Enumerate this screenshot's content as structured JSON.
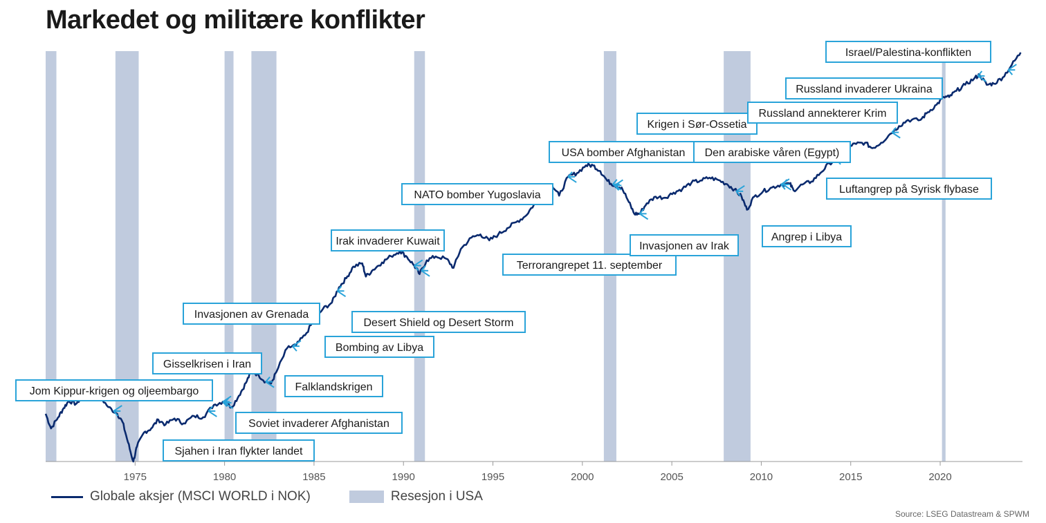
{
  "title": "Markedet og militære konflikter",
  "legend": {
    "series_label": "Globale aksjer (MSCI WORLD i NOK)",
    "recession_label": "Resesjon i USA"
  },
  "source": "Source: LSEG Datastream & SPWM",
  "colors": {
    "series": "#0a2a6e",
    "recession": "#c0cbde",
    "annotation_border": "#29a3d9",
    "arrow": "#29a3d9"
  },
  "chart_data": {
    "type": "line",
    "title": "Markedet og militære konflikter",
    "xlabel": "",
    "ylabel": "",
    "xlim": [
      1970.0,
      2024.6
    ],
    "y_scale": "log",
    "grid": false,
    "legend_position": "bottom-left",
    "x_ticks": [
      1975,
      1980,
      1985,
      1990,
      1995,
      2000,
      2005,
      2010,
      2015,
      2020
    ],
    "series": [
      {
        "name": "Globale aksjer (MSCI WORLD i NOK)",
        "points": [
          [
            1970.0,
            1.0
          ],
          [
            1970.3,
            0.88
          ],
          [
            1970.7,
            0.97
          ],
          [
            1971.0,
            1.05
          ],
          [
            1971.3,
            1.12
          ],
          [
            1971.7,
            1.09
          ],
          [
            1972.0,
            1.15
          ],
          [
            1972.5,
            1.19
          ],
          [
            1972.8,
            1.22
          ],
          [
            1973.0,
            1.17
          ],
          [
            1973.5,
            1.06
          ],
          [
            1974.0,
            1.0
          ],
          [
            1974.3,
            0.93
          ],
          [
            1974.6,
            0.78
          ],
          [
            1974.9,
            0.66
          ],
          [
            1975.1,
            0.75
          ],
          [
            1975.5,
            0.85
          ],
          [
            1975.9,
            0.88
          ],
          [
            1976.3,
            0.95
          ],
          [
            1976.7,
            0.91
          ],
          [
            1977.2,
            0.96
          ],
          [
            1977.7,
            0.92
          ],
          [
            1978.3,
            0.98
          ],
          [
            1978.8,
            0.97
          ],
          [
            1979.4,
            1.08
          ],
          [
            1979.9,
            1.11
          ],
          [
            1980.4,
            1.06
          ],
          [
            1980.8,
            1.17
          ],
          [
            1981.2,
            1.31
          ],
          [
            1981.5,
            1.45
          ],
          [
            1981.9,
            1.4
          ],
          [
            1982.3,
            1.32
          ],
          [
            1982.6,
            1.3
          ],
          [
            1982.9,
            1.44
          ],
          [
            1983.5,
            1.77
          ],
          [
            1984.0,
            1.82
          ],
          [
            1984.5,
            1.98
          ],
          [
            1985.0,
            2.26
          ],
          [
            1985.5,
            2.49
          ],
          [
            1986.0,
            2.63
          ],
          [
            1986.4,
            3.01
          ],
          [
            1986.8,
            3.25
          ],
          [
            1987.2,
            3.6
          ],
          [
            1987.7,
            3.7
          ],
          [
            1987.9,
            3.3
          ],
          [
            1988.3,
            3.5
          ],
          [
            1988.8,
            3.73
          ],
          [
            1989.3,
            3.94
          ],
          [
            1989.8,
            4.12
          ],
          [
            1990.2,
            3.91
          ],
          [
            1990.6,
            3.63
          ],
          [
            1990.9,
            3.37
          ],
          [
            1991.3,
            3.8
          ],
          [
            1991.8,
            3.93
          ],
          [
            1992.4,
            3.85
          ],
          [
            1992.8,
            3.56
          ],
          [
            1993.2,
            4.19
          ],
          [
            1993.8,
            4.63
          ],
          [
            1994.3,
            4.76
          ],
          [
            1994.8,
            4.52
          ],
          [
            1995.3,
            4.76
          ],
          [
            1995.8,
            5.03
          ],
          [
            1996.3,
            5.3
          ],
          [
            1996.8,
            5.57
          ],
          [
            1997.3,
            6.18
          ],
          [
            1997.8,
            6.67
          ],
          [
            1998.3,
            7.34
          ],
          [
            1998.7,
            6.67
          ],
          [
            1999.2,
            7.86
          ],
          [
            1999.7,
            8.12
          ],
          [
            2000.2,
            8.68
          ],
          [
            2000.6,
            8.68
          ],
          [
            2001.0,
            8.26
          ],
          [
            2001.4,
            7.58
          ],
          [
            2001.8,
            7.29
          ],
          [
            2002.2,
            7.16
          ],
          [
            2002.6,
            6.3
          ],
          [
            2002.9,
            5.7
          ],
          [
            2003.2,
            5.7
          ],
          [
            2003.6,
            6.24
          ],
          [
            2004.1,
            6.61
          ],
          [
            2004.6,
            6.55
          ],
          [
            2005.1,
            6.85
          ],
          [
            2005.6,
            7.09
          ],
          [
            2006.1,
            7.47
          ],
          [
            2006.6,
            7.61
          ],
          [
            2007.1,
            7.8
          ],
          [
            2007.6,
            7.64
          ],
          [
            2008.1,
            7.36
          ],
          [
            2008.5,
            7.04
          ],
          [
            2008.9,
            6.61
          ],
          [
            2009.2,
            5.9
          ],
          [
            2009.6,
            6.61
          ],
          [
            2010.1,
            6.92
          ],
          [
            2010.6,
            7.16
          ],
          [
            2011.1,
            7.35
          ],
          [
            2011.6,
            7.4
          ],
          [
            2011.8,
            6.99
          ],
          [
            2012.3,
            7.35
          ],
          [
            2012.8,
            7.54
          ],
          [
            2013.3,
            8.12
          ],
          [
            2013.8,
            8.84
          ],
          [
            2014.3,
            9.21
          ],
          [
            2014.8,
            10.25
          ],
          [
            2015.3,
            10.46
          ],
          [
            2015.8,
            10.57
          ],
          [
            2016.2,
            10.08
          ],
          [
            2016.7,
            10.57
          ],
          [
            2017.2,
            11.41
          ],
          [
            2017.7,
            12.22
          ],
          [
            2018.2,
            12.89
          ],
          [
            2018.9,
            12.89
          ],
          [
            2019.3,
            13.78
          ],
          [
            2019.8,
            14.72
          ],
          [
            2020.2,
            15.73
          ],
          [
            2020.5,
            15.73
          ],
          [
            2020.9,
            16.59
          ],
          [
            2021.4,
            17.51
          ],
          [
            2021.9,
            18.48
          ],
          [
            2022.2,
            19.11
          ],
          [
            2022.6,
            17.51
          ],
          [
            2023.0,
            17.68
          ],
          [
            2023.5,
            18.67
          ],
          [
            2024.0,
            20.8
          ],
          [
            2024.5,
            23.18
          ]
        ]
      }
    ],
    "recessions": [
      [
        1970.0,
        1970.6
      ],
      [
        1973.9,
        1975.2
      ],
      [
        1980.0,
        1980.5
      ],
      [
        1981.5,
        1982.9
      ],
      [
        1990.6,
        1991.2
      ],
      [
        2001.2,
        2001.9
      ],
      [
        2007.9,
        2009.4
      ],
      [
        2020.1,
        2020.3
      ]
    ],
    "annotations": [
      {
        "label": "Jom Kippur-krigen og oljeembargo",
        "year": 1973.8
      },
      {
        "label": "Sjahen i Iran flykter landet",
        "year": 1979.1
      },
      {
        "label": "Gisselkrisen i Iran",
        "year": 1979.9
      },
      {
        "label": "Soviet invaderer Afghanistan",
        "year": 1980.0
      },
      {
        "label": "Falklandskrigen",
        "year": 1982.3
      },
      {
        "label": "Invasjonen av Grenada",
        "year": 1983.8
      },
      {
        "label": "Bombing av Libya",
        "year": 1986.3
      },
      {
        "label": "Irak invaderer Kuwait",
        "year": 1990.6
      },
      {
        "label": "Desert Shield og Desert Storm",
        "year": 1991.0
      },
      {
        "label": "NATO bomber Yugoslavia",
        "year": 1999.2
      },
      {
        "label": "USA bomber Afghanistan",
        "year": 2001.8
      },
      {
        "label": "Terrorangrepet 11. september",
        "year": 2001.7
      },
      {
        "label": "Invasjonen av Irak",
        "year": 2003.2
      },
      {
        "label": "Krigen i Sør-Ossetia",
        "year": 2008.6
      },
      {
        "label": "Den arabiske våren (Egypt)",
        "year": 2011.1
      },
      {
        "label": "Angrep i Libya",
        "year": 2011.2
      },
      {
        "label": "Russland annekterer Krim",
        "year": 2014.2
      },
      {
        "label": "Luftangrep på Syrisk flybase",
        "year": 2017.3
      },
      {
        "label": "Russland invaderer Ukraina",
        "year": 2022.1
      },
      {
        "label": "Israel/Palestina-konflikten",
        "year": 2023.8
      }
    ]
  }
}
